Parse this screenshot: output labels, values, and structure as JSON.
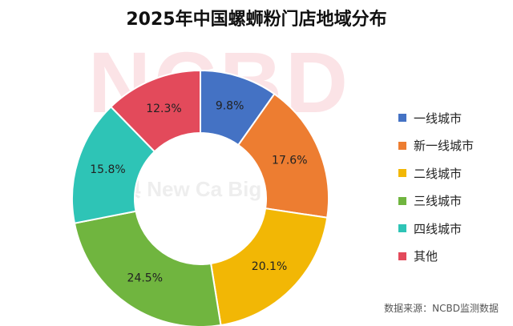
{
  "chart_data": {
    "type": "pie",
    "donut": true,
    "title": "2025年中国螺蛳粉门店地域分布",
    "categories": [
      "一线城市",
      "新一线城市",
      "二线城市",
      "三线城市",
      "四线城市",
      "其他"
    ],
    "values": [
      9.8,
      17.6,
      20.1,
      24.5,
      15.8,
      12.3
    ],
    "value_labels": [
      "9.8%",
      "17.6%",
      "20.1%",
      "24.5%",
      "15.8%",
      "12.3%"
    ],
    "colors": [
      "#4472c4",
      "#ed7d31",
      "#f2b705",
      "#70b53f",
      "#2ec4b6",
      "#e34a5b"
    ],
    "legend_position": "right"
  },
  "watermark": {
    "logo": "NCBD",
    "tagline": "典 New Ca Big Data"
  },
  "source_note": "数据来源：NCBD监测数据"
}
